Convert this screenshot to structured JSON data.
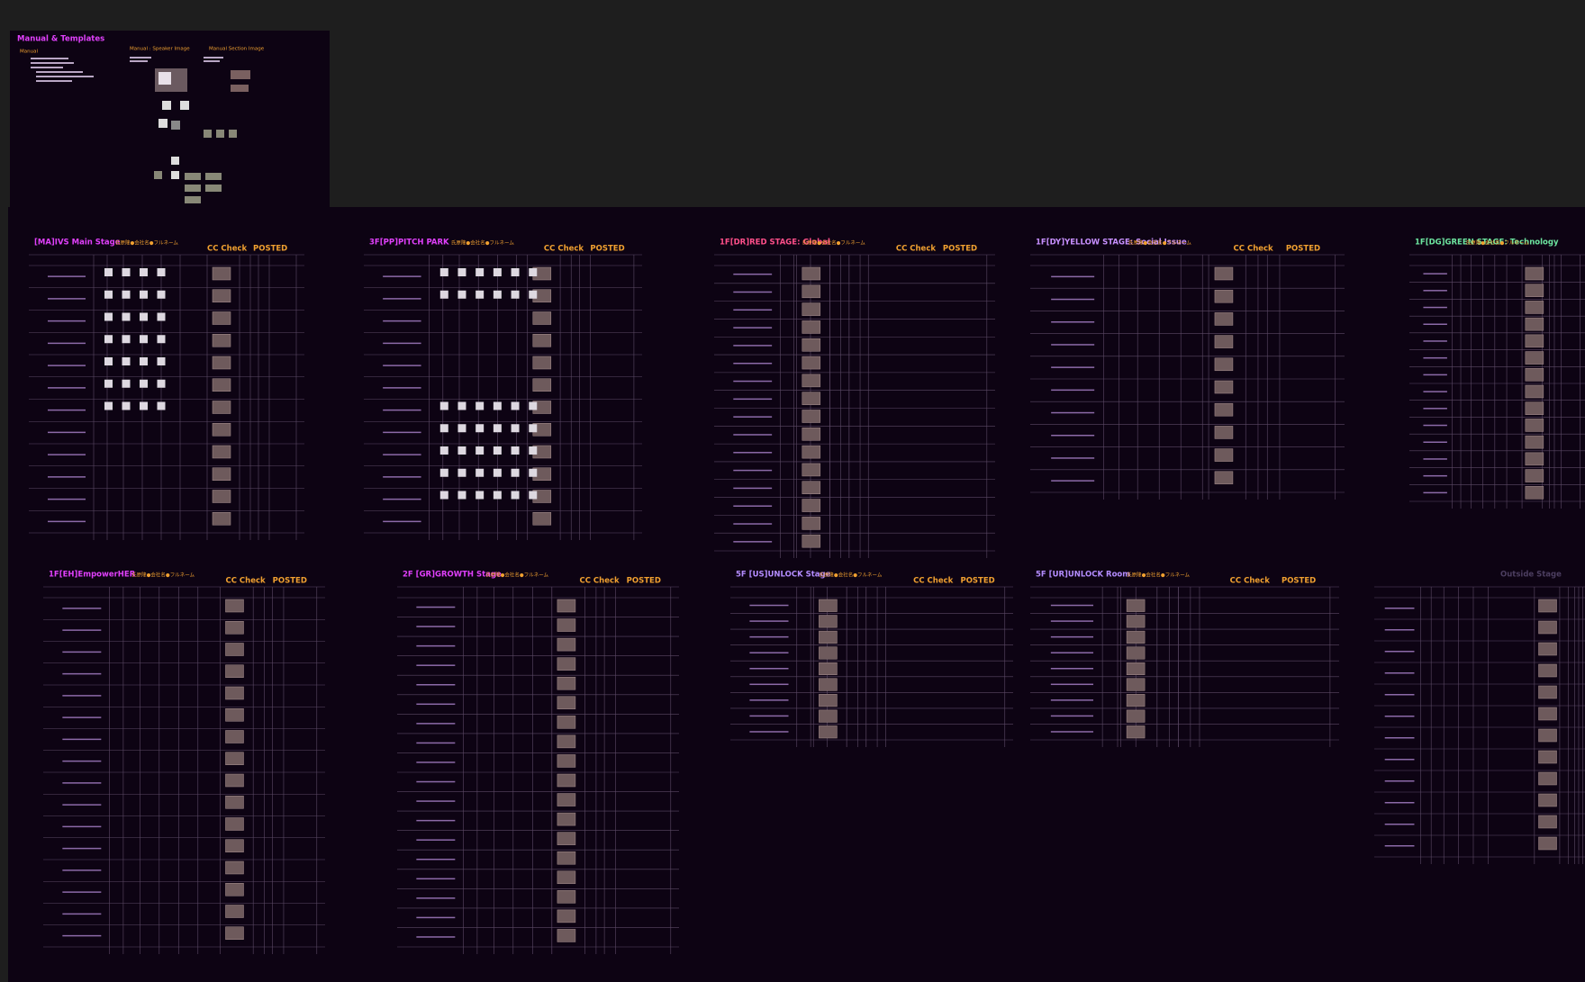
{
  "manual": {
    "title": "Manual & Templates",
    "section": "Manual",
    "speaker_image": "Manual : Speaker Image",
    "section_image": "Manual Section Image"
  },
  "boards": [
    {
      "title": "[MA]IVS Main Stage",
      "header": "氏原隆●会社名●フルネーム",
      "cc_check": "CC Check",
      "posted": "POSTED"
    },
    {
      "title": "3F[PP]PITCH PARK",
      "header": "氏原隆●会社名●フルネーム",
      "cc_check": "CC Check",
      "posted": "POSTED"
    },
    {
      "title": "1F[DR]RED STAGE: Global",
      "header": "氏原隆●会社名●フルネーム",
      "cc_check": "CC Check",
      "posted": "POSTED"
    },
    {
      "title": "1F[DY]YELLOW STAGE: Social Issue",
      "header": "氏原隆●会社名●フルネーム",
      "cc_check": "CC Check",
      "posted": "POSTED"
    },
    {
      "title": "1F[DG]GREEN STAGE: Technology",
      "header": "氏原隆●会社名●フルネーム"
    },
    {
      "title": "1F[EH]EmpowerHER",
      "header": "氏原隆●会社名●フルネーム",
      "cc_check": "CC Check",
      "posted": "POSTED"
    },
    {
      "title": "2F [GR]GROWTH Stage",
      "header": "氏原隆●会社名●フルネーム",
      "cc_check": "CC Check",
      "posted": "POSTED"
    },
    {
      "title": "5F [US]UNLOCK Stage",
      "header": "氏原隆●会社名●フルネーム",
      "cc_check": "CC Check",
      "posted": "POSTED"
    },
    {
      "title": "5F [UR]UNLOCK Room",
      "header": "氏原隆●会社名●フルネーム",
      "cc_check": "CC Check",
      "posted": "POSTED"
    },
    {
      "title": "Outside Stage"
    }
  ]
}
